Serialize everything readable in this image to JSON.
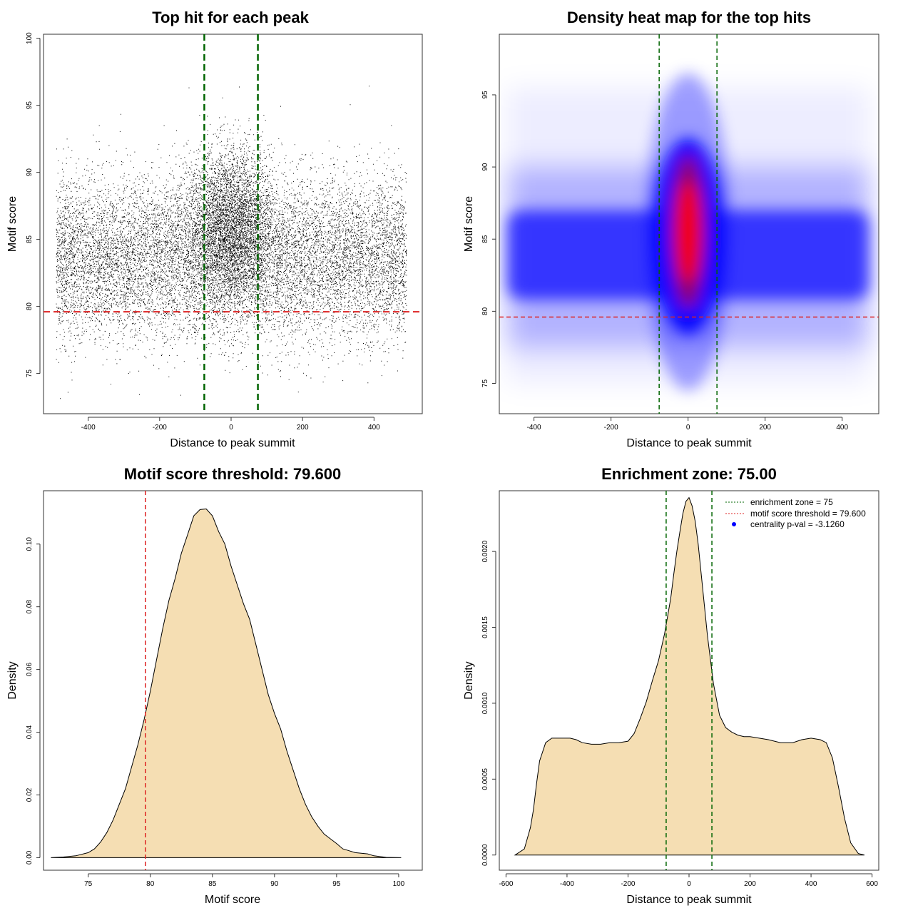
{
  "chart_data": [
    {
      "id": "scatter",
      "type": "scatter",
      "title": "Top hit for each peak",
      "xlabel": "Distance to peak summit",
      "ylabel": "Motif score",
      "xlim": [
        -525,
        535
      ],
      "ylim": [
        72.0,
        100.3
      ],
      "xticks": [
        -400,
        -200,
        0,
        200,
        400
      ],
      "yticks": [
        75,
        80,
        85,
        90,
        95,
        100
      ],
      "vlines": [
        -75,
        75
      ],
      "hline": 79.6,
      "vline_color": "#006400",
      "hline_color": "#dd2222",
      "point_color": "#000000",
      "points_summary": {
        "x_range": [
          -490,
          490
        ],
        "y_range": [
          73,
          99
        ],
        "background_score_mean": 83.6,
        "central_score_mean": 86.0,
        "central_width": 60,
        "approx_points": 20000
      }
    },
    {
      "id": "heatmap",
      "type": "heatmap",
      "title": "Density heat map for the top hits",
      "xlabel": "Distance to peak summit",
      "ylabel": "Motif score",
      "xlim": [
        -490,
        495
      ],
      "ylim": [
        72.9,
        99.2
      ],
      "xticks": [
        -400,
        -200,
        0,
        200,
        400
      ],
      "yticks": [
        75,
        80,
        85,
        90,
        95
      ],
      "vlines": [
        -75,
        75
      ],
      "hline": 79.6,
      "density_peak": {
        "x": 0,
        "y": 85.5
      },
      "color_scale": [
        "#ffffff",
        "#0000ff",
        "#ff0000"
      ],
      "vline_color": "#006400",
      "hline_color": "#dd2222"
    },
    {
      "id": "score_density",
      "type": "area",
      "title": "Motif score threshold: 79.600",
      "xlabel": "Motif score",
      "ylabel": "Density",
      "xlim": [
        71.4,
        101.9
      ],
      "ylim": [
        -0.004,
        0.117
      ],
      "xticks": [
        75,
        80,
        85,
        90,
        95,
        100
      ],
      "yticks": [
        0.0,
        0.02,
        0.04,
        0.06,
        0.08,
        0.1
      ],
      "ytick_labels": [
        "0.00",
        "0.02",
        "0.04",
        "0.06",
        "0.08",
        "0.10"
      ],
      "vline": 79.6,
      "vline_color": "#dd2222",
      "fill_color": "#f5deb3",
      "x": [
        72,
        73,
        74,
        75,
        75.5,
        76,
        76.5,
        77,
        77.5,
        78,
        78.5,
        79,
        79.5,
        80,
        80.5,
        81,
        81.5,
        82,
        82.5,
        83,
        83.5,
        84,
        84.5,
        85,
        85.5,
        86,
        86.5,
        87,
        87.5,
        88,
        88.5,
        89,
        89.5,
        90,
        90.5,
        91,
        91.5,
        92,
        92.5,
        93,
        93.5,
        94,
        94.5,
        95,
        95.5,
        96,
        96.5,
        97,
        97.5,
        98,
        99,
        100.2
      ],
      "y": [
        0.0,
        0.0002,
        0.0006,
        0.0016,
        0.0028,
        0.005,
        0.008,
        0.012,
        0.017,
        0.022,
        0.029,
        0.036,
        0.044,
        0.053,
        0.063,
        0.073,
        0.082,
        0.089,
        0.097,
        0.103,
        0.109,
        0.111,
        0.1112,
        0.109,
        0.104,
        0.1,
        0.093,
        0.087,
        0.081,
        0.076,
        0.068,
        0.06,
        0.052,
        0.046,
        0.041,
        0.034,
        0.028,
        0.022,
        0.017,
        0.013,
        0.01,
        0.0075,
        0.006,
        0.0045,
        0.0028,
        0.0022,
        0.0016,
        0.0014,
        0.0012,
        0.0006,
        0.0001,
        0.0
      ]
    },
    {
      "id": "distance_density",
      "type": "area",
      "title": "Enrichment zone: 75.00",
      "xlabel": "Distance to peak summit",
      "ylabel": "Density",
      "xlim": [
        -622,
        622
      ],
      "ylim": [
        -0.0001,
        0.0024
      ],
      "xticks": [
        -600,
        -400,
        -200,
        0,
        200,
        400,
        600
      ],
      "yticks": [
        0.0,
        0.0005,
        0.001,
        0.0015,
        0.002
      ],
      "ytick_labels": [
        "0.0000",
        "0.0005",
        "0.0010",
        "0.0015",
        "0.0020"
      ],
      "vlines": [
        -75,
        75
      ],
      "vline_color": "#006400",
      "fill_color": "#f5deb3",
      "x": [
        -570,
        -540,
        -520,
        -510,
        -500,
        -490,
        -470,
        -450,
        -430,
        -410,
        -390,
        -370,
        -350,
        -320,
        -290,
        -260,
        -230,
        -200,
        -180,
        -160,
        -140,
        -120,
        -100,
        -80,
        -60,
        -50,
        -40,
        -30,
        -20,
        -10,
        0,
        10,
        20,
        30,
        40,
        50,
        60,
        80,
        100,
        120,
        140,
        160,
        180,
        200,
        230,
        260,
        300,
        340,
        370,
        400,
        430,
        450,
        470,
        490,
        510,
        530,
        555,
        575
      ],
      "y": [
        0.0,
        4e-05,
        0.00018,
        0.0003,
        0.00047,
        0.00062,
        0.00074,
        0.00077,
        0.00077,
        0.00077,
        0.00077,
        0.00076,
        0.00074,
        0.00073,
        0.00073,
        0.00074,
        0.00074,
        0.00075,
        0.0008,
        0.0009,
        0.00101,
        0.00115,
        0.00128,
        0.00146,
        0.00169,
        0.00185,
        0.002,
        0.00213,
        0.00225,
        0.00233,
        0.002355,
        0.0023,
        0.0022,
        0.00205,
        0.00185,
        0.00165,
        0.00145,
        0.00113,
        0.00092,
        0.00084,
        0.00081,
        0.00079,
        0.00078,
        0.00078,
        0.00077,
        0.00076,
        0.00074,
        0.00074,
        0.00076,
        0.00077,
        0.00076,
        0.00074,
        0.00064,
        0.00045,
        0.00024,
        8e-05,
        1e-05,
        0.0
      ],
      "legend": {
        "position": "top-right",
        "entries": [
          {
            "label": "enrichment zone = 75",
            "style": "dotted-line",
            "color": "#006400"
          },
          {
            "label": "motif score threshold = 79.600",
            "style": "dotted-line",
            "color": "#dd2222"
          },
          {
            "label": "centrality p-val = -3.1260",
            "style": "dot",
            "color": "#0000ff"
          }
        ]
      }
    }
  ]
}
